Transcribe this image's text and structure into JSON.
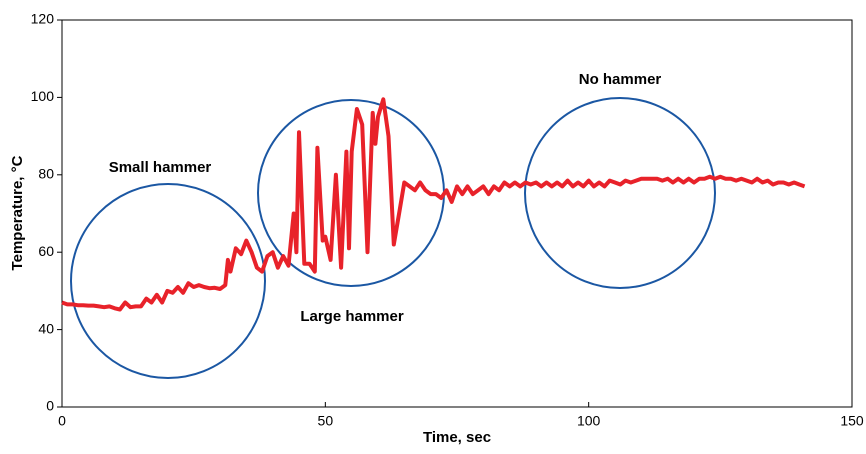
{
  "chart_data": {
    "type": "line",
    "x_label": "Time, sec",
    "y_label": "Temperature, °C",
    "annotations": [
      "Small hammer",
      "Large hammer",
      "No hammer"
    ],
    "xlim": [
      0,
      150
    ],
    "xticks": [
      0,
      50,
      100,
      150
    ],
    "ylim": [
      20,
      120
    ],
    "yticks": [
      {
        "value": 20,
        "label": "0"
      },
      40,
      60,
      80,
      100,
      120
    ],
    "series": [
      {
        "color": "#e8222a",
        "x": [
          0,
          1,
          2,
          3,
          4,
          5,
          6,
          7,
          8,
          9,
          10,
          11,
          12,
          13,
          14,
          15,
          16,
          17,
          18,
          19,
          20,
          21,
          22,
          23,
          24,
          25,
          26,
          27,
          28,
          29,
          30,
          31,
          31.5,
          32,
          33,
          34,
          35,
          36,
          37,
          38,
          39,
          40,
          41,
          42,
          43,
          44,
          44.5,
          45,
          46,
          47,
          48,
          48.5,
          49.5,
          50,
          51,
          52,
          53,
          54,
          54.5,
          55,
          56,
          57,
          58,
          59,
          59.5,
          60,
          61,
          62,
          63,
          64,
          65,
          66,
          67,
          68,
          69,
          70,
          71,
          72,
          73,
          74,
          75,
          76,
          77,
          78,
          79,
          80,
          81,
          82,
          83,
          84,
          85,
          86,
          87,
          88,
          89,
          90,
          91,
          92,
          93,
          94,
          95,
          96,
          97,
          98,
          99,
          100,
          101,
          102,
          103,
          104,
          105,
          106,
          107,
          108,
          109,
          110,
          111,
          112,
          113,
          114,
          115,
          116,
          117,
          118,
          119,
          120,
          121,
          122,
          123,
          124,
          125,
          126,
          127,
          128,
          129,
          130,
          131,
          132,
          133,
          134,
          135,
          136,
          137,
          138,
          139,
          140,
          141
        ],
        "values": [
          47,
          46.5,
          46.5,
          46.3,
          46.3,
          46.2,
          46.2,
          46,
          45.8,
          46,
          45.5,
          45.2,
          47,
          45.8,
          46,
          46,
          48,
          47,
          49,
          47,
          50,
          49.5,
          51,
          49.5,
          52,
          51,
          51.5,
          51,
          50.7,
          50.8,
          50.5,
          51.5,
          58,
          55,
          61,
          59.5,
          63,
          60,
          56,
          55,
          59,
          60,
          56,
          59,
          56.5,
          70,
          60,
          91,
          57,
          57,
          55,
          87,
          63,
          64,
          58,
          80,
          56,
          86,
          61,
          86,
          97,
          93,
          60,
          96,
          88,
          95,
          99.5,
          90,
          62,
          70,
          78,
          77,
          76,
          78,
          76,
          75,
          75,
          74,
          76,
          73,
          77,
          75,
          77,
          75,
          76,
          77,
          75,
          77,
          76,
          78,
          77,
          78,
          77,
          78,
          77.5,
          78,
          77,
          78,
          77,
          78,
          77,
          78.5,
          77,
          78,
          77,
          78.5,
          77,
          78,
          77,
          78.5,
          78,
          77.5,
          78.5,
          78,
          78.5,
          79,
          79,
          79,
          79,
          78.5,
          79,
          78,
          79,
          78,
          79,
          78,
          79,
          79,
          79.5,
          79,
          79.5,
          79,
          79,
          78.5,
          79,
          78.5,
          78,
          79,
          78,
          78.5,
          77.5,
          78,
          78,
          77.5,
          78,
          77.5,
          77
        ]
      }
    ]
  }
}
